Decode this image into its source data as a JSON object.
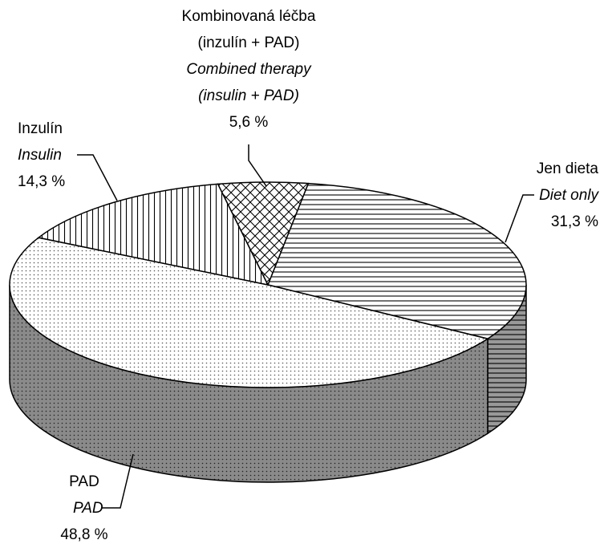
{
  "chart_data": {
    "type": "pie3d",
    "categories": [
      "Jen dieta",
      "PAD",
      "Inzulín",
      "Kombinovaná léčba (inzulín + PAD)"
    ],
    "categories_en": [
      "Diet only",
      "PAD",
      "Insulin",
      "Combined therapy (insulin + PAD)"
    ],
    "values": [
      31.3,
      48.8,
      14.3,
      5.6
    ],
    "value_labels": [
      "31,3 %",
      "48,8 %",
      "14,3 %",
      "5,6 %"
    ]
  }
}
